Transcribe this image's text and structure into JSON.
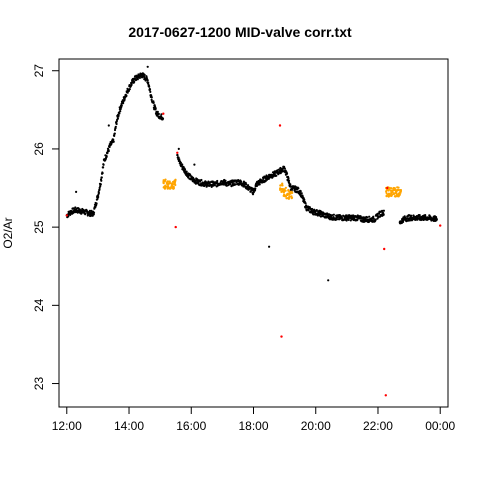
{
  "chart_data": {
    "type": "scatter",
    "title": "2017-0627-1200 MID-valve corr.txt",
    "xlabel": "",
    "ylabel": "O2/Ar",
    "x_unit": "time of day (hours, 12 = 12:00, 24 = 00:00)",
    "xlim": [
      11.75,
      24.25
    ],
    "ylim": [
      22.7,
      27.15
    ],
    "x_ticks": [
      12,
      14,
      16,
      18,
      20,
      22,
      24
    ],
    "x_tick_labels": [
      "12:00",
      "14:00",
      "16:00",
      "18:00",
      "20:00",
      "22:00",
      "00:00"
    ],
    "y_ticks": [
      23,
      24,
      25,
      26,
      27
    ],
    "y_tick_labels": [
      "23",
      "24",
      "25",
      "26",
      "27"
    ],
    "grid": false,
    "legend": "none",
    "colors": {
      "main": "#000000",
      "orange": "#ffa500",
      "red": "#ff0000"
    },
    "series": [
      {
        "color": "black",
        "x": [
          12.0,
          12.15,
          12.3,
          12.5,
          12.7,
          12.85,
          13.0,
          13.1,
          13.2,
          13.3,
          13.4,
          13.5,
          13.6,
          13.7,
          13.8,
          13.9,
          14.0,
          14.1,
          14.2,
          14.3,
          14.4,
          14.5,
          14.6,
          14.7,
          14.8,
          14.9,
          15.0,
          15.1,
          15.55,
          15.6,
          15.7,
          15.8,
          16.0,
          16.2,
          16.5,
          16.8,
          17.0,
          17.2,
          17.5,
          17.7,
          17.9,
          18.0,
          18.1,
          18.3,
          18.5,
          18.7,
          18.85,
          19.0,
          19.2,
          19.4,
          19.5,
          19.6,
          19.7,
          19.9,
          20.1,
          20.3,
          20.5,
          20.7,
          21.0,
          21.3,
          21.5,
          21.7,
          21.9,
          22.0,
          22.1,
          22.2,
          22.7,
          22.8,
          23.0,
          23.3,
          23.6,
          23.9
        ],
        "y": [
          25.15,
          25.2,
          25.22,
          25.2,
          25.18,
          25.17,
          25.4,
          25.6,
          25.85,
          25.95,
          26.05,
          26.1,
          26.35,
          26.5,
          26.6,
          26.7,
          26.78,
          26.85,
          26.9,
          26.92,
          26.95,
          26.92,
          26.88,
          26.7,
          26.55,
          26.45,
          26.42,
          26.4,
          25.95,
          25.85,
          25.78,
          25.72,
          25.62,
          25.58,
          25.55,
          25.55,
          25.58,
          25.55,
          25.58,
          25.55,
          25.48,
          25.45,
          25.55,
          25.6,
          25.65,
          25.68,
          25.72,
          25.75,
          25.5,
          25.48,
          25.45,
          25.35,
          25.25,
          25.2,
          25.18,
          25.15,
          25.13,
          25.12,
          25.12,
          25.12,
          25.1,
          25.1,
          25.1,
          25.15,
          25.18,
          25.18,
          25.05,
          25.1,
          25.12,
          25.12,
          25.12,
          25.1
        ]
      },
      {
        "color": "orange",
        "x": [
          15.15,
          15.25,
          15.35,
          15.45,
          18.9,
          19.0,
          19.1,
          19.2,
          22.3,
          22.4,
          22.5,
          22.6,
          22.7
        ],
        "y": [
          25.55,
          25.55,
          25.55,
          25.55,
          25.5,
          25.45,
          25.42,
          25.4,
          25.45,
          25.45,
          25.45,
          25.45,
          25.45
        ]
      },
      {
        "color": "red",
        "x": [
          12.0,
          15.1,
          15.55,
          15.5,
          18.85,
          18.9,
          22.2,
          22.25,
          22.3,
          24.0
        ],
        "y": [
          25.15,
          26.45,
          25.95,
          25.0,
          26.3,
          23.6,
          24.72,
          22.85,
          25.5,
          25.02
        ]
      }
    ],
    "outliers_black": {
      "x": [
        13.35,
        14.6,
        16.1,
        18.5,
        20.4,
        12.3,
        15.6
      ],
      "y": [
        26.3,
        27.05,
        25.8,
        24.75,
        24.32,
        25.45,
        26.0
      ]
    }
  }
}
